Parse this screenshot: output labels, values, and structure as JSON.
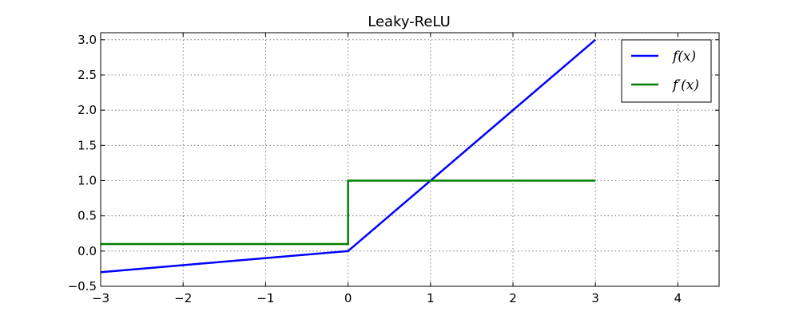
{
  "chart_data": {
    "type": "line",
    "title": "Leaky-ReLU",
    "xlabel": "",
    "ylabel": "",
    "xlim": [
      -3,
      4.5
    ],
    "ylim": [
      -0.5,
      3.1
    ],
    "xticks": [
      -3,
      -2,
      -1,
      0,
      1,
      2,
      3,
      4
    ],
    "xtick_labels": [
      "−3",
      "−2",
      "−1",
      "0",
      "1",
      "2",
      "3",
      "4"
    ],
    "yticks": [
      -0.5,
      0.0,
      0.5,
      1.0,
      1.5,
      2.0,
      2.5,
      3.0
    ],
    "ytick_labels": [
      "−0.5",
      "0.0",
      "0.5",
      "1.0",
      "1.5",
      "2.0",
      "2.5",
      "3.0"
    ],
    "grid": true,
    "legend_position": "top-right",
    "series": [
      {
        "name": "f(x)",
        "color": "#0000ff",
        "x": [
          -3,
          0,
          3
        ],
        "y": [
          -0.3,
          0,
          3
        ]
      },
      {
        "name": "f′(x)",
        "color": "#008000",
        "x": [
          -3,
          0,
          0,
          3
        ],
        "y": [
          0.1,
          0.1,
          1,
          1
        ]
      }
    ]
  }
}
